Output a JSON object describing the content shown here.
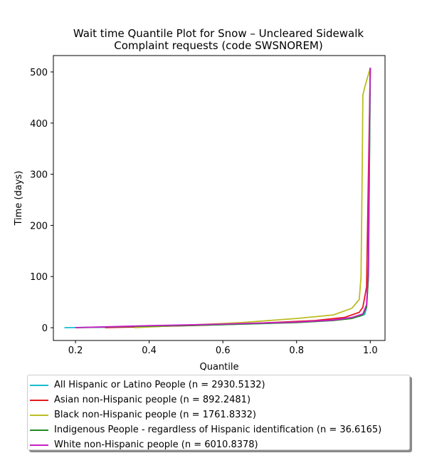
{
  "chart_data": {
    "type": "line",
    "title_line1": "Wait time Quantile Plot for Snow – Uncleared Sidewalk",
    "title_line2": "Complaint  requests (code SWSNOREM)",
    "xlabel": "Quantile",
    "ylabel": "Time (days)",
    "xlim": [
      0.14,
      1.04
    ],
    "ylim": [
      -25,
      532
    ],
    "x_ticks": [
      0.2,
      0.4,
      0.6,
      0.8,
      1.0
    ],
    "x_tick_labels": [
      "0.2",
      "0.4",
      "0.6",
      "0.8",
      "1.0"
    ],
    "y_ticks": [
      0,
      100,
      200,
      300,
      400,
      500
    ],
    "y_tick_labels": [
      "0",
      "100",
      "200",
      "300",
      "400",
      "500"
    ],
    "grid": false,
    "legend_position": "below",
    "series": [
      {
        "name": "All Hispanic or Latino People (n = 2930.5132)",
        "color": "#17becf",
        "x": [
          0.17,
          0.3,
          0.5,
          0.7,
          0.85,
          0.93,
          0.97,
          0.985,
          0.99,
          0.995,
          1.0
        ],
        "y": [
          0,
          1,
          4,
          8,
          12,
          17,
          22,
          26,
          40,
          100,
          508
        ]
      },
      {
        "name": "Asian non-Hispanic people (n = 892.2481)",
        "color": "#e41a1c",
        "x": [
          0.28,
          0.4,
          0.55,
          0.7,
          0.85,
          0.93,
          0.97,
          0.98,
          0.99,
          0.995,
          1.0
        ],
        "y": [
          0,
          2,
          5,
          9,
          14,
          20,
          30,
          40,
          80,
          300,
          508
        ]
      },
      {
        "name": "Black non-Hispanic people (n = 1761.8332)",
        "color": "#bcbd22",
        "x": [
          0.36,
          0.5,
          0.65,
          0.8,
          0.9,
          0.95,
          0.97,
          0.975,
          0.978,
          0.98,
          0.985,
          1.0
        ],
        "y": [
          0,
          5,
          10,
          18,
          25,
          38,
          55,
          100,
          300,
          455,
          470,
          508
        ]
      },
      {
        "name": "Indigenous People - regardless of Hispanic identification (n = 36.6165)",
        "color": "#228b22",
        "x": [
          0.2,
          0.4,
          0.6,
          0.8,
          0.9,
          0.95,
          0.98,
          0.99,
          0.995,
          1.0
        ],
        "y": [
          0,
          3,
          6,
          10,
          14,
          18,
          25,
          40,
          100,
          508
        ]
      },
      {
        "name": "White non-Hispanic people (n = 6010.8378)",
        "color": "#c71fc7",
        "x": [
          0.2,
          0.4,
          0.6,
          0.8,
          0.9,
          0.95,
          0.98,
          0.99,
          0.995,
          0.997,
          1.0
        ],
        "y": [
          0,
          4,
          7,
          11,
          15,
          20,
          27,
          45,
          120,
          350,
          508
        ]
      }
    ]
  }
}
